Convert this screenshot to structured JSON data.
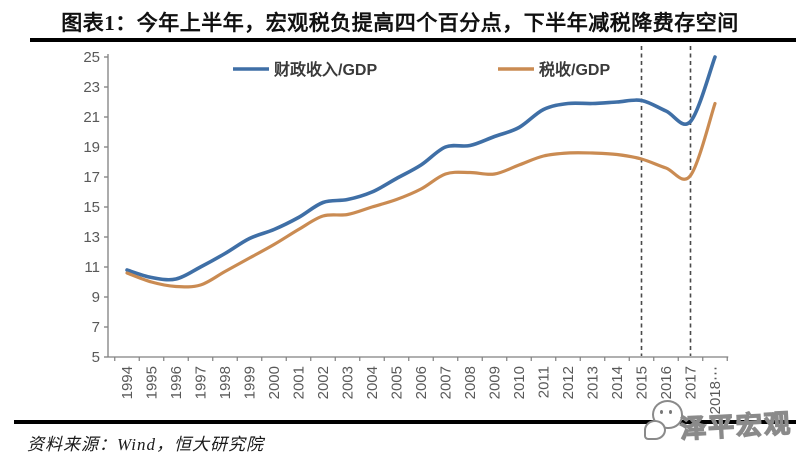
{
  "header": {
    "title": "图表1：今年上半年，宏观税负提高四个百分点，下半年减税降费存空间"
  },
  "footer": {
    "source": "资料来源：Wind，恒大研究院",
    "watermark": "泽平宏观"
  },
  "chart_data": {
    "type": "line",
    "title": "图表1：今年上半年，宏观税负提高四个百分点，下半年减税降费存空间",
    "categories": [
      "1994",
      "1995",
      "1996",
      "1997",
      "1998",
      "1999",
      "2000",
      "2001",
      "2002",
      "2003",
      "2004",
      "2005",
      "2006",
      "2007",
      "2008",
      "2009",
      "2010",
      "2011",
      "2012",
      "2013",
      "2014",
      "2015",
      "2016",
      "2017",
      "2018"
    ],
    "last_category_suffix": "⋯",
    "series": [
      {
        "name": "财政收入/GDP",
        "color": "#3f6fa6",
        "values": [
          10.8,
          10.3,
          10.2,
          11.0,
          11.9,
          12.9,
          13.5,
          14.3,
          15.3,
          15.5,
          16.0,
          16.9,
          17.8,
          19.0,
          19.1,
          19.7,
          20.3,
          21.5,
          21.9,
          21.9,
          22.0,
          22.1,
          21.4,
          20.7,
          25.0
        ]
      },
      {
        "name": "税收/GDP",
        "color": "#ca8b52",
        "values": [
          10.6,
          10.0,
          9.7,
          9.8,
          10.7,
          11.6,
          12.5,
          13.5,
          14.4,
          14.5,
          15.0,
          15.5,
          16.2,
          17.2,
          17.3,
          17.2,
          17.8,
          18.4,
          18.6,
          18.6,
          18.5,
          18.2,
          17.6,
          17.1,
          21.9
        ]
      }
    ],
    "xlabel": "",
    "ylabel": "",
    "ylim": [
      5,
      25
    ],
    "ytick_step": 2,
    "grid": false,
    "legend_position": "top",
    "dashed_vlines_years": [
      2015,
      2017
    ],
    "axis_color": "#808080",
    "tick_label_color": "#595959",
    "dashed_line_color": "#4a4a4a",
    "legend_text_color": "#3a3a3a"
  }
}
